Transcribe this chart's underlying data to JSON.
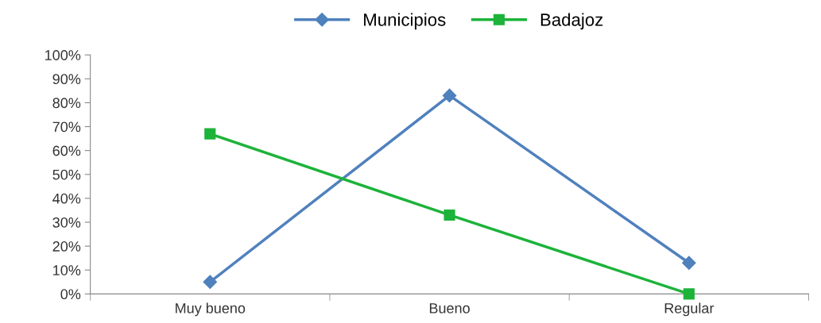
{
  "chart_data": {
    "type": "line",
    "categories": [
      "Muy bueno",
      "Bueno",
      "Regular"
    ],
    "series": [
      {
        "name": "Municipios",
        "color": "#4f81bd",
        "marker": "diamond",
        "values": [
          5,
          83,
          13
        ]
      },
      {
        "name": "Badajoz",
        "color": "#1db33a",
        "marker": "square",
        "values": [
          67,
          33,
          0
        ]
      }
    ],
    "ylim": [
      0,
      100
    ],
    "yticks": [
      {
        "value": 0,
        "label": "0%"
      },
      {
        "value": 10,
        "label": "10%"
      },
      {
        "value": 20,
        "label": "20%"
      },
      {
        "value": 30,
        "label": "30%"
      },
      {
        "value": 40,
        "label": "40%"
      },
      {
        "value": 50,
        "label": "50%"
      },
      {
        "value": 60,
        "label": "60%"
      },
      {
        "value": 70,
        "label": "70%"
      },
      {
        "value": 80,
        "label": "80%"
      },
      {
        "value": 90,
        "label": "90%"
      },
      {
        "value": 100,
        "label": "100%"
      }
    ],
    "grid": false,
    "legend": "top"
  }
}
